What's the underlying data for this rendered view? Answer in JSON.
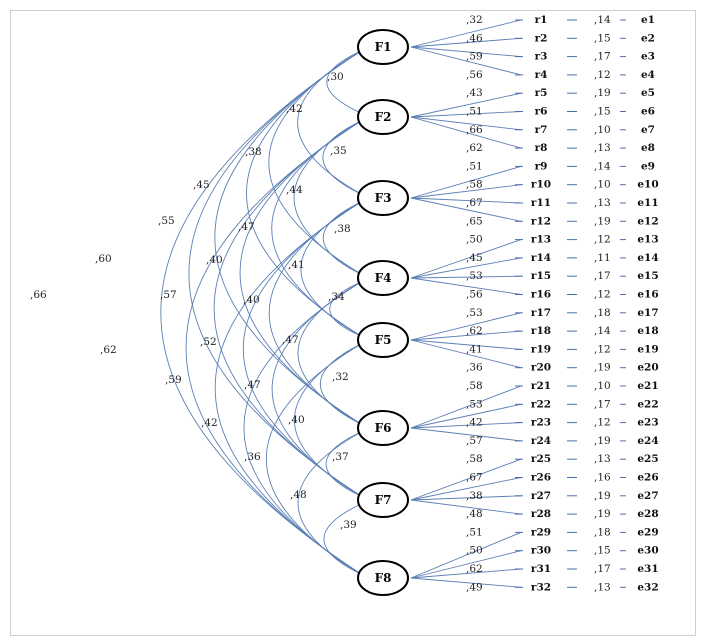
{
  "factors": [
    "F1",
    "F2",
    "F3",
    "F4",
    "F5",
    "F6",
    "F7",
    "F8"
  ],
  "correlations": [
    {
      "from": "F1",
      "to": "F2",
      "value": ",30"
    },
    {
      "from": "F1",
      "to": "F3",
      "value": ",42"
    },
    {
      "from": "F1",
      "to": "F4",
      "value": ",38"
    },
    {
      "from": "F1",
      "to": "F5",
      "value": ",45"
    },
    {
      "from": "F1",
      "to": "F6",
      "value": ",55"
    },
    {
      "from": "F1",
      "to": "F7",
      "value": ",60"
    },
    {
      "from": "F1",
      "to": "F8",
      "value": ",66"
    },
    {
      "from": "F2",
      "to": "F3",
      "value": ",35"
    },
    {
      "from": "F2",
      "to": "F4",
      "value": ",44"
    },
    {
      "from": "F2",
      "to": "F5",
      "value": ",47"
    },
    {
      "from": "F2",
      "to": "F6",
      "value": ",40"
    },
    {
      "from": "F2",
      "to": "F7",
      "value": ",57"
    },
    {
      "from": "F2",
      "to": "F8",
      "value": ",62"
    },
    {
      "from": "F3",
      "to": "F4",
      "value": ",38"
    },
    {
      "from": "F3",
      "to": "F5",
      "value": ",41"
    },
    {
      "from": "F3",
      "to": "F6",
      "value": ",40"
    },
    {
      "from": "F3",
      "to": "F7",
      "value": ",52"
    },
    {
      "from": "F3",
      "to": "F8",
      "value": ",59"
    },
    {
      "from": "F4",
      "to": "F5",
      "value": ",34"
    },
    {
      "from": "F4",
      "to": "F6",
      "value": ",47"
    },
    {
      "from": "F4",
      "to": "F7",
      "value": ",47"
    },
    {
      "from": "F4",
      "to": "F8",
      "value": ",42"
    },
    {
      "from": "F5",
      "to": "F6",
      "value": ",32"
    },
    {
      "from": "F5",
      "to": "F7",
      "value": ",40"
    },
    {
      "from": "F5",
      "to": "F8",
      "value": ",36"
    },
    {
      "from": "F6",
      "to": "F7",
      "value": ",37"
    },
    {
      "from": "F6",
      "to": "F8",
      "value": ",48"
    },
    {
      "from": "F7",
      "to": "F8",
      "value": ",39"
    }
  ],
  "items": [
    {
      "name": "r1",
      "loading": ",32",
      "error": "e1",
      "error_value": ",14"
    },
    {
      "name": "r2",
      "loading": ",46",
      "error": "e2",
      "error_value": ",15"
    },
    {
      "name": "r3",
      "loading": ",59",
      "error": "e3",
      "error_value": ",17"
    },
    {
      "name": "r4",
      "loading": ",56",
      "error": "e4",
      "error_value": ",12"
    },
    {
      "name": "r5",
      "loading": ",43",
      "error": "e5",
      "error_value": ",19"
    },
    {
      "name": "r6",
      "loading": ",51",
      "error": "e6",
      "error_value": ",15"
    },
    {
      "name": "r7",
      "loading": ",66",
      "error": "e7",
      "error_value": ",10"
    },
    {
      "name": "r8",
      "loading": ",62",
      "error": "e8",
      "error_value": ",13"
    },
    {
      "name": "r9",
      "loading": ",51",
      "error": "e9",
      "error_value": ",14"
    },
    {
      "name": "r10",
      "loading": ",58",
      "error": "e10",
      "error_value": ",10"
    },
    {
      "name": "r11",
      "loading": ",67",
      "error": "e11",
      "error_value": ",13"
    },
    {
      "name": "r12",
      "loading": ",65",
      "error": "e12",
      "error_value": ",19"
    },
    {
      "name": "r13",
      "loading": ",50",
      "error": "e13",
      "error_value": ",12"
    },
    {
      "name": "r14",
      "loading": ",45",
      "error": "e14",
      "error_value": ",11"
    },
    {
      "name": "r15",
      "loading": ",53",
      "error": "e15",
      "error_value": ",17"
    },
    {
      "name": "r16",
      "loading": ",56",
      "error": "e16",
      "error_value": ",12"
    },
    {
      "name": "r17",
      "loading": ",53",
      "error": "e17",
      "error_value": ",18"
    },
    {
      "name": "r18",
      "loading": ",62",
      "error": "e18",
      "error_value": ",14"
    },
    {
      "name": "r19",
      "loading": ",41",
      "error": "e19",
      "error_value": ",12"
    },
    {
      "name": "r20",
      "loading": ",36",
      "error": "e20",
      "error_value": ",19"
    },
    {
      "name": "r21",
      "loading": ",58",
      "error": "e21",
      "error_value": ",10"
    },
    {
      "name": "r22",
      "loading": ",53",
      "error": "e22",
      "error_value": ",17"
    },
    {
      "name": "r23",
      "loading": ",42",
      "error": "e23",
      "error_value": ",12"
    },
    {
      "name": "r24",
      "loading": ",57",
      "error": "e24",
      "error_value": ",19"
    },
    {
      "name": "r25",
      "loading": ",58",
      "error": "e25",
      "error_value": ",13"
    },
    {
      "name": "r26",
      "loading": ",67",
      "error": "e26",
      "error_value": ",16"
    },
    {
      "name": "r27",
      "loading": ",38",
      "error": "e27",
      "error_value": ",19"
    },
    {
      "name": "r28",
      "loading": ",48",
      "error": "e28",
      "error_value": ",19"
    },
    {
      "name": "r29",
      "loading": ",51",
      "error": "e29",
      "error_value": ",18"
    },
    {
      "name": "r30",
      "loading": ",50",
      "error": "e30",
      "error_value": ",15"
    },
    {
      "name": "r31",
      "loading": ",62",
      "error": "e31",
      "error_value": ",17"
    },
    {
      "name": "r32",
      "loading": ",49",
      "error": "e32",
      "error_value": ",13"
    }
  ]
}
